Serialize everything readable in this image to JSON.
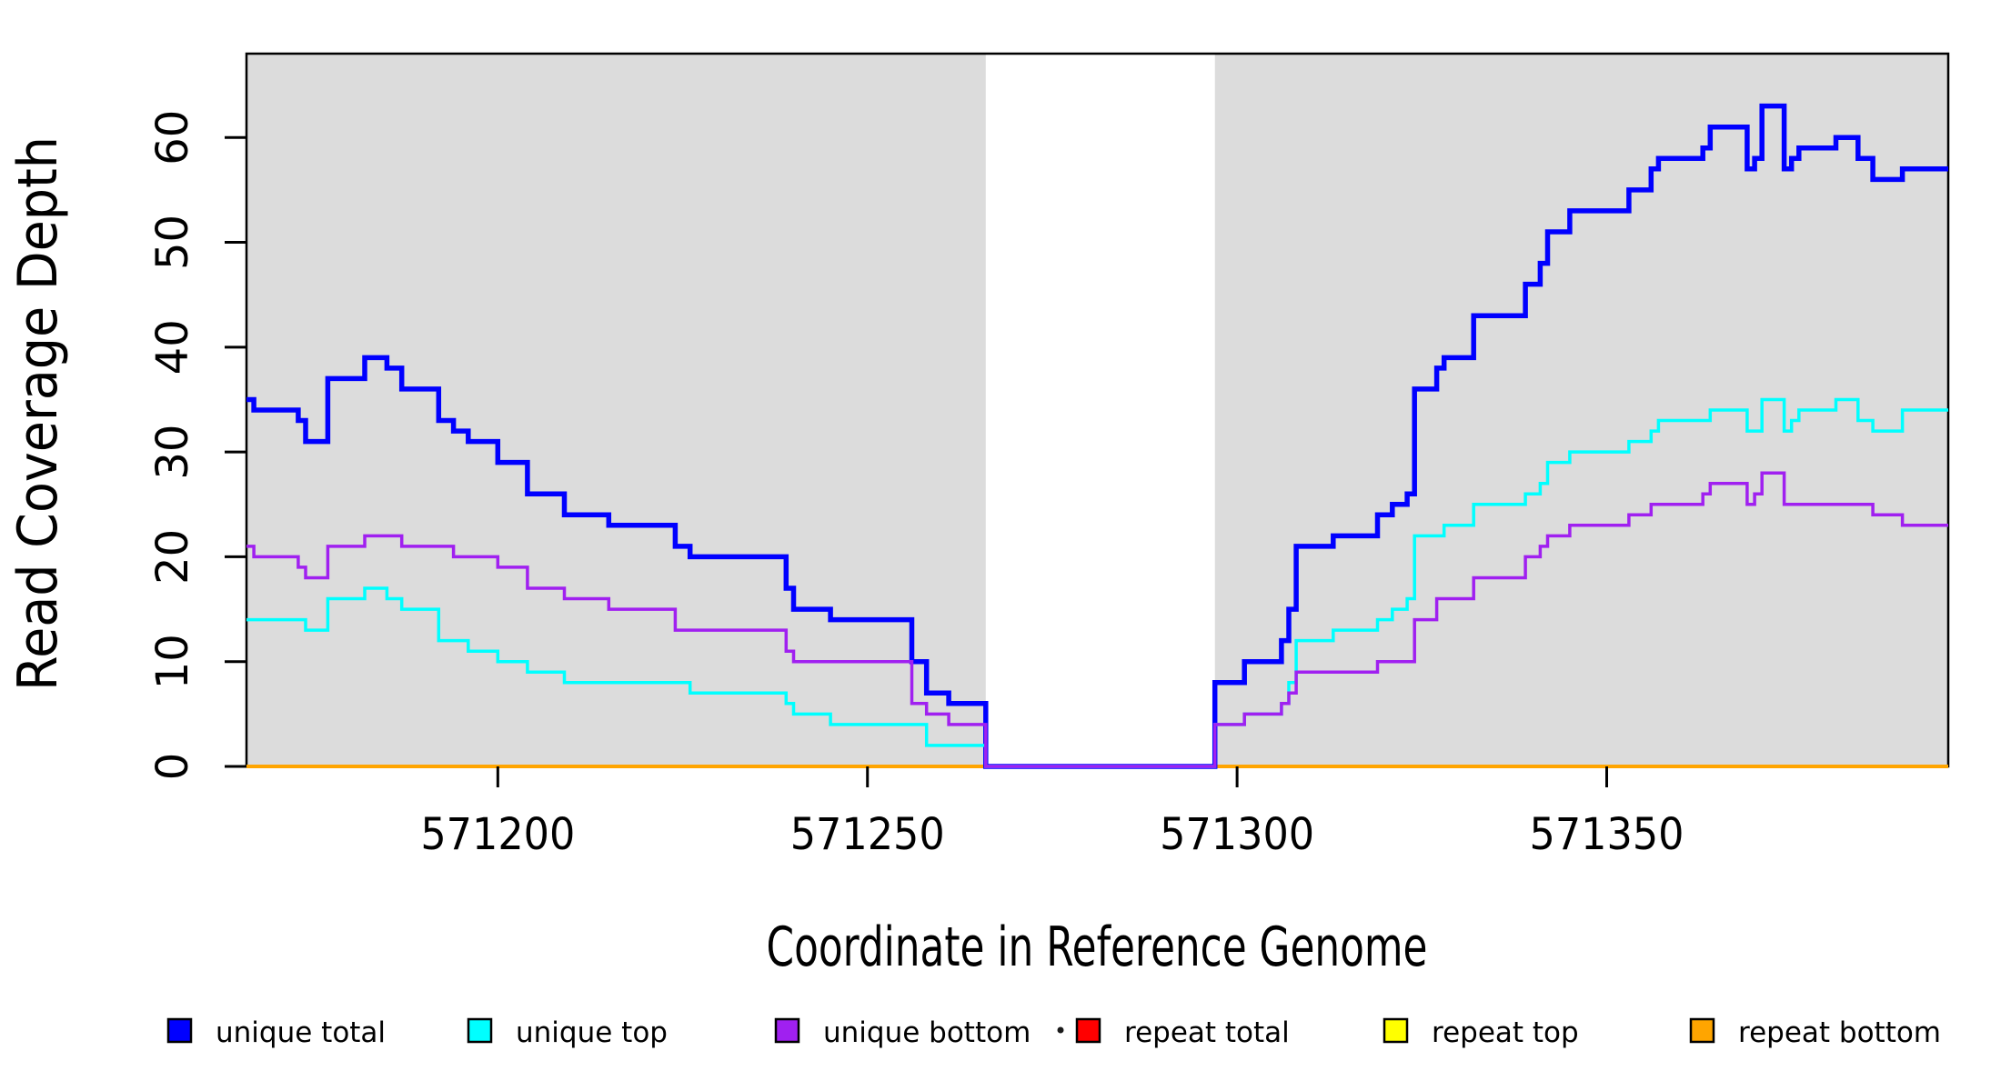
{
  "figure": {
    "background": "#ffffff",
    "plot_background_shaded": "#DCDCDC",
    "border_color": "#000000"
  },
  "chart_data": {
    "type": "line",
    "style": "step-after",
    "title": "",
    "xlabel": "Coordinate in Reference Genome",
    "ylabel": "Read Coverage Depth",
    "xlim": [
      571166,
      571396.2
    ],
    "ylim": [
      0,
      68
    ],
    "grid": false,
    "x_ticks": [
      571200,
      571250,
      571300,
      571350
    ],
    "y_ticks": [
      0,
      10,
      20,
      30,
      40,
      50,
      60
    ],
    "shaded_regions": [
      {
        "x0": 571166,
        "x1": 571266,
        "color": "#DCDCDC",
        "meaning": "covered segment"
      },
      {
        "x0": 571297,
        "x1": 571396.2,
        "color": "#DCDCDC",
        "meaning": "covered segment"
      }
    ],
    "series": [
      {
        "name": "repeat total",
        "color": "#FF0000",
        "width": 3,
        "points": [
          [
            571166,
            0
          ],
          [
            571396.2,
            0
          ]
        ]
      },
      {
        "name": "repeat top",
        "color": "#FFFF00",
        "width": 3,
        "points": [
          [
            571166,
            0
          ],
          [
            571396.2,
            0
          ]
        ]
      },
      {
        "name": "repeat bottom",
        "color": "#FFA500",
        "width": 4,
        "points": [
          [
            571166,
            0
          ],
          [
            571396.2,
            0
          ]
        ]
      },
      {
        "name": "unique total",
        "color": "#0000FF",
        "width": 5.5,
        "points": [
          [
            571166,
            35
          ],
          [
            571167,
            34
          ],
          [
            571173,
            33
          ],
          [
            571174,
            31
          ],
          [
            571177,
            37
          ],
          [
            571182,
            39
          ],
          [
            571185,
            38
          ],
          [
            571187,
            36
          ],
          [
            571192,
            33
          ],
          [
            571194,
            32
          ],
          [
            571196,
            31
          ],
          [
            571200,
            29
          ],
          [
            571204,
            26
          ],
          [
            571209,
            24
          ],
          [
            571215,
            23
          ],
          [
            571224,
            21
          ],
          [
            571226,
            20
          ],
          [
            571239,
            17
          ],
          [
            571240,
            15
          ],
          [
            571245,
            14
          ],
          [
            571256,
            10
          ],
          [
            571258,
            7
          ],
          [
            571261,
            6
          ],
          [
            571266,
            0
          ],
          [
            571297,
            8
          ],
          [
            571301,
            10
          ],
          [
            571306,
            12
          ],
          [
            571307,
            15
          ],
          [
            571308,
            21
          ],
          [
            571313,
            22
          ],
          [
            571319,
            24
          ],
          [
            571321,
            25
          ],
          [
            571323,
            26
          ],
          [
            571324,
            36
          ],
          [
            571327,
            38
          ],
          [
            571328,
            39
          ],
          [
            571332,
            43
          ],
          [
            571339,
            46
          ],
          [
            571341,
            48
          ],
          [
            571342,
            51
          ],
          [
            571345,
            53
          ],
          [
            571353,
            55
          ],
          [
            571356,
            57
          ],
          [
            571357,
            58
          ],
          [
            571363,
            59
          ],
          [
            571364,
            61
          ],
          [
            571369,
            57
          ],
          [
            571370,
            58
          ],
          [
            571371,
            63
          ],
          [
            571374,
            57
          ],
          [
            571375,
            58
          ],
          [
            571376,
            59
          ],
          [
            571381,
            60
          ],
          [
            571384,
            58
          ],
          [
            571386,
            56
          ],
          [
            571390,
            57
          ],
          [
            571396.2,
            57
          ]
        ]
      },
      {
        "name": "unique top",
        "color": "#00FFFF",
        "width": 3.5,
        "points": [
          [
            571166,
            14
          ],
          [
            571174,
            13
          ],
          [
            571177,
            16
          ],
          [
            571182,
            17
          ],
          [
            571185,
            16
          ],
          [
            571187,
            15
          ],
          [
            571192,
            12
          ],
          [
            571196,
            11
          ],
          [
            571200,
            10
          ],
          [
            571204,
            9
          ],
          [
            571209,
            8
          ],
          [
            571226,
            7
          ],
          [
            571239,
            6
          ],
          [
            571240,
            5
          ],
          [
            571245,
            4
          ],
          [
            571258,
            2
          ],
          [
            571266,
            0
          ],
          [
            571297,
            4
          ],
          [
            571301,
            5
          ],
          [
            571306,
            6
          ],
          [
            571307,
            8
          ],
          [
            571308,
            12
          ],
          [
            571313,
            13
          ],
          [
            571319,
            14
          ],
          [
            571321,
            15
          ],
          [
            571323,
            16
          ],
          [
            571324,
            22
          ],
          [
            571328,
            23
          ],
          [
            571332,
            25
          ],
          [
            571339,
            26
          ],
          [
            571341,
            27
          ],
          [
            571342,
            29
          ],
          [
            571345,
            30
          ],
          [
            571353,
            31
          ],
          [
            571356,
            32
          ],
          [
            571357,
            33
          ],
          [
            571364,
            34
          ],
          [
            571369,
            32
          ],
          [
            571371,
            35
          ],
          [
            571374,
            32
          ],
          [
            571375,
            33
          ],
          [
            571376,
            34
          ],
          [
            571381,
            35
          ],
          [
            571384,
            33
          ],
          [
            571386,
            32
          ],
          [
            571390,
            34
          ],
          [
            571396.2,
            34
          ]
        ]
      },
      {
        "name": "unique bottom",
        "color": "#A020F0",
        "width": 3.5,
        "points": [
          [
            571166,
            21
          ],
          [
            571167,
            20
          ],
          [
            571173,
            19
          ],
          [
            571174,
            18
          ],
          [
            571177,
            21
          ],
          [
            571182,
            22
          ],
          [
            571187,
            21
          ],
          [
            571194,
            20
          ],
          [
            571200,
            19
          ],
          [
            571204,
            17
          ],
          [
            571209,
            16
          ],
          [
            571215,
            15
          ],
          [
            571224,
            13
          ],
          [
            571239,
            11
          ],
          [
            571240,
            10
          ],
          [
            571256,
            6
          ],
          [
            571258,
            5
          ],
          [
            571261,
            4
          ],
          [
            571266,
            0
          ],
          [
            571297,
            4
          ],
          [
            571301,
            5
          ],
          [
            571306,
            6
          ],
          [
            571307,
            7
          ],
          [
            571308,
            9
          ],
          [
            571319,
            10
          ],
          [
            571324,
            14
          ],
          [
            571327,
            16
          ],
          [
            571332,
            18
          ],
          [
            571339,
            20
          ],
          [
            571341,
            21
          ],
          [
            571342,
            22
          ],
          [
            571345,
            23
          ],
          [
            571353,
            24
          ],
          [
            571356,
            25
          ],
          [
            571363,
            26
          ],
          [
            571364,
            27
          ],
          [
            571369,
            25
          ],
          [
            571370,
            26
          ],
          [
            571371,
            28
          ],
          [
            571374,
            25
          ],
          [
            571386,
            24
          ],
          [
            571390,
            23
          ],
          [
            571396.2,
            23
          ]
        ]
      }
    ],
    "legend": {
      "position": "bottom",
      "entries": [
        {
          "label": "unique total",
          "color": "#0000FF"
        },
        {
          "label": "unique top",
          "color": "#00FFFF"
        },
        {
          "label": "unique bottom",
          "color": "#A020F0"
        },
        {
          "label": "repeat total",
          "color": "#FF0000"
        },
        {
          "label": "repeat top",
          "color": "#FFFF00"
        },
        {
          "label": "repeat bottom",
          "color": "#FFA500"
        }
      ]
    }
  }
}
